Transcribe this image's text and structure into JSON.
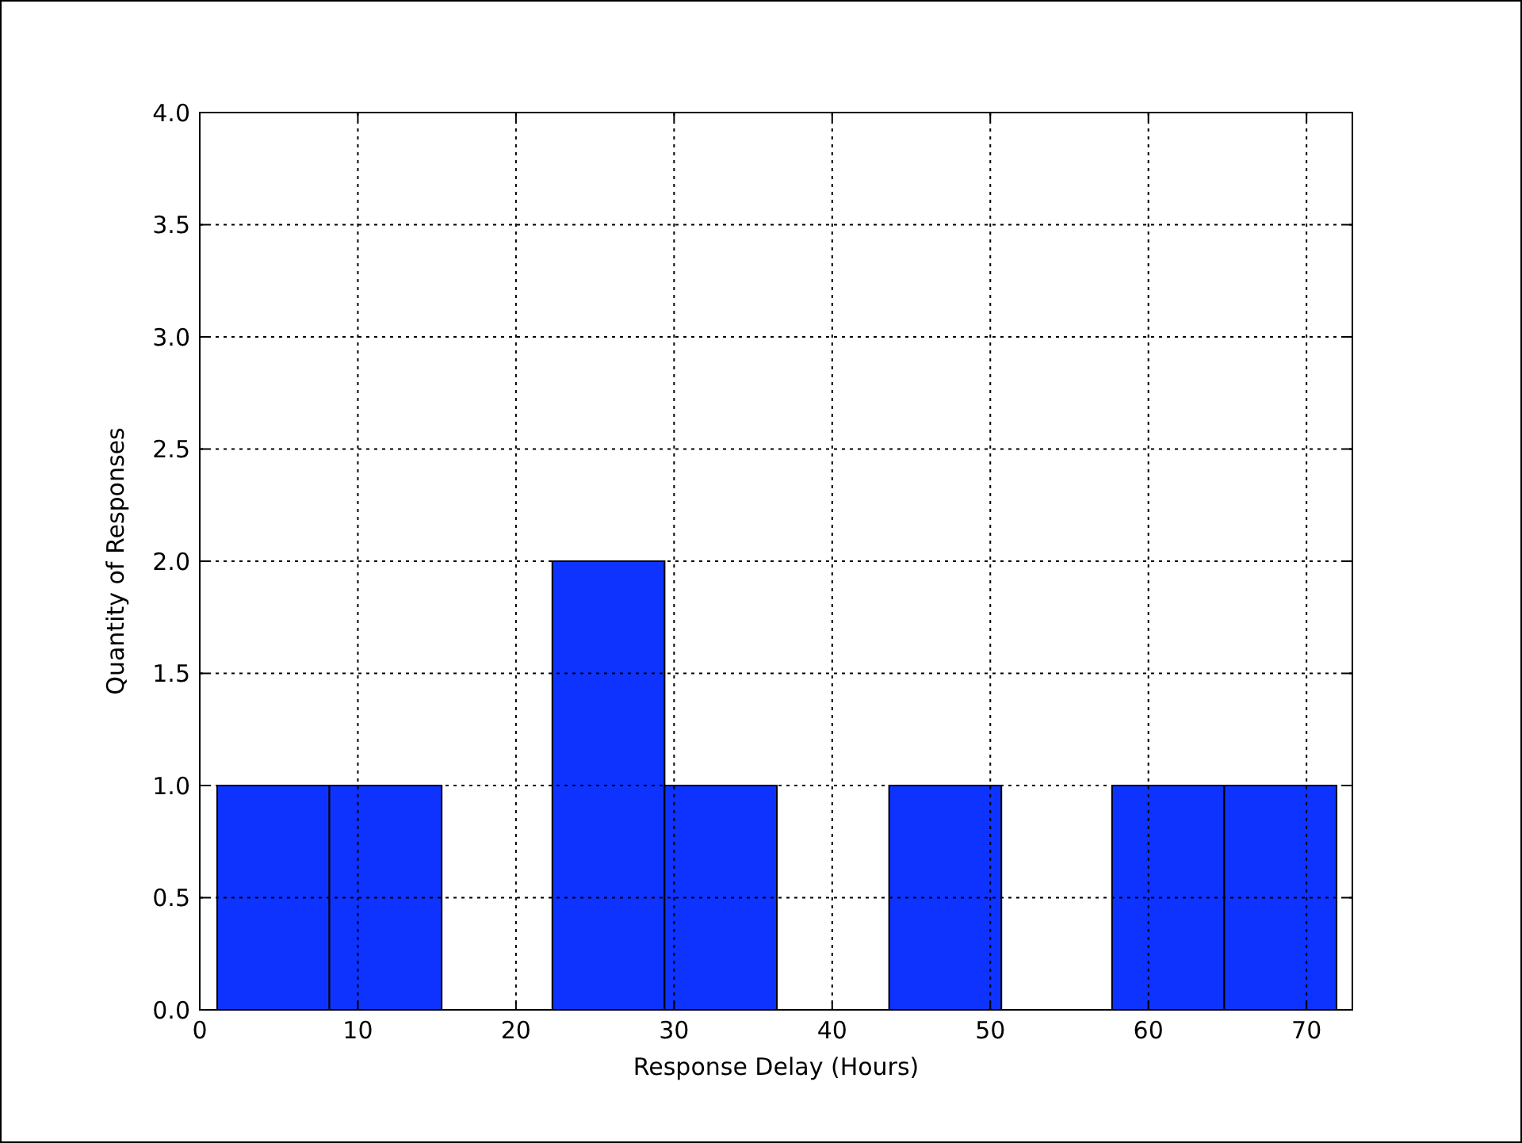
{
  "chart_data": {
    "type": "histogram",
    "xlabel": "Response Delay (Hours)",
    "ylabel": "Quantity of Responses",
    "bins": [
      1.1,
      8.2,
      15.3,
      22.3,
      29.4,
      36.5,
      43.6,
      50.7,
      57.7,
      64.8,
      71.9
    ],
    "values": [
      1,
      1,
      0,
      2,
      1,
      0,
      1,
      0,
      1,
      1
    ],
    "color": "#0f33ff",
    "xlim": [
      0,
      72.9
    ],
    "xticks": [
      0,
      10,
      20,
      30,
      40,
      50,
      60,
      70
    ],
    "ylim": [
      0,
      4
    ],
    "yticks": [
      {
        "value": 0,
        "label": "0.0"
      },
      {
        "value": 0.5,
        "label": "0.5"
      },
      {
        "value": 1,
        "label": "1.0"
      },
      {
        "value": 1.5,
        "label": "1.5"
      },
      {
        "value": 2,
        "label": "2.0"
      },
      {
        "value": 2.5,
        "label": "2.5"
      },
      {
        "value": 3,
        "label": "3.0"
      },
      {
        "value": 3.5,
        "label": "3.5"
      },
      {
        "value": 4,
        "label": "4.0"
      }
    ],
    "grid": true,
    "line_style": "dotted"
  }
}
